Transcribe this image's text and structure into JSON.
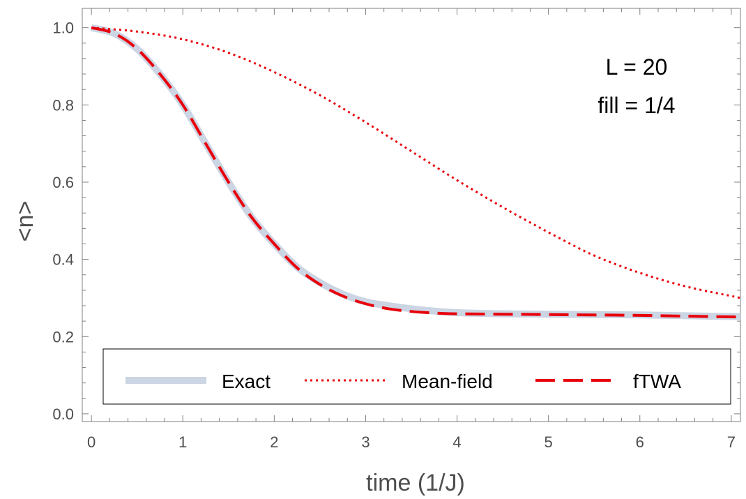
{
  "chart_data": {
    "type": "line",
    "xlabel": "time (1/J)",
    "ylabel": "<n>",
    "xlim": [
      -0.1,
      7.1
    ],
    "ylim": [
      -0.02,
      1.05
    ],
    "x_ticks": [
      "0",
      "1",
      "2",
      "3",
      "4",
      "5",
      "6",
      "7"
    ],
    "y_ticks": [
      "0.0",
      "0.2",
      "0.4",
      "0.6",
      "0.8",
      "1.0"
    ],
    "annotations": [
      "L = 20",
      "fill = 1/4"
    ],
    "legend_position": "bottom",
    "grid": false,
    "series": [
      {
        "name": "Exact",
        "color": "#cbd5e3",
        "style": "solid-thick",
        "x": [
          0,
          0.25,
          0.5,
          0.75,
          1.0,
          1.25,
          1.5,
          1.75,
          2.0,
          2.25,
          2.5,
          2.75,
          3.0,
          3.25,
          3.5,
          3.75,
          4.0,
          4.5,
          5.0,
          5.5,
          6.0,
          6.5,
          7.0,
          7.1
        ],
        "values": [
          1.0,
          0.985,
          0.945,
          0.88,
          0.8,
          0.7,
          0.6,
          0.51,
          0.44,
          0.38,
          0.34,
          0.31,
          0.29,
          0.28,
          0.272,
          0.266,
          0.262,
          0.259,
          0.258,
          0.257,
          0.256,
          0.254,
          0.252,
          0.252
        ]
      },
      {
        "name": "Mean-field",
        "color": "#e8000b",
        "style": "dotted",
        "x": [
          0,
          0.5,
          1.0,
          1.5,
          2.0,
          2.5,
          3.0,
          3.5,
          4.0,
          4.5,
          5.0,
          5.5,
          6.0,
          6.5,
          7.0,
          7.1
        ],
        "values": [
          1.0,
          0.99,
          0.97,
          0.935,
          0.885,
          0.825,
          0.755,
          0.68,
          0.605,
          0.535,
          0.47,
          0.41,
          0.365,
          0.33,
          0.305,
          0.3
        ]
      },
      {
        "name": "fTWA",
        "color": "#e8000b",
        "style": "dashed",
        "x": [
          0,
          0.25,
          0.5,
          0.75,
          1.0,
          1.25,
          1.5,
          1.75,
          2.0,
          2.25,
          2.5,
          2.75,
          3.0,
          3.25,
          3.5,
          3.75,
          4.0,
          4.5,
          5.0,
          5.5,
          6.0,
          6.5,
          7.0,
          7.1
        ],
        "values": [
          1.0,
          0.985,
          0.945,
          0.88,
          0.8,
          0.7,
          0.6,
          0.51,
          0.44,
          0.378,
          0.335,
          0.305,
          0.285,
          0.272,
          0.265,
          0.261,
          0.259,
          0.258,
          0.257,
          0.256,
          0.255,
          0.253,
          0.251,
          0.251
        ]
      }
    ]
  }
}
